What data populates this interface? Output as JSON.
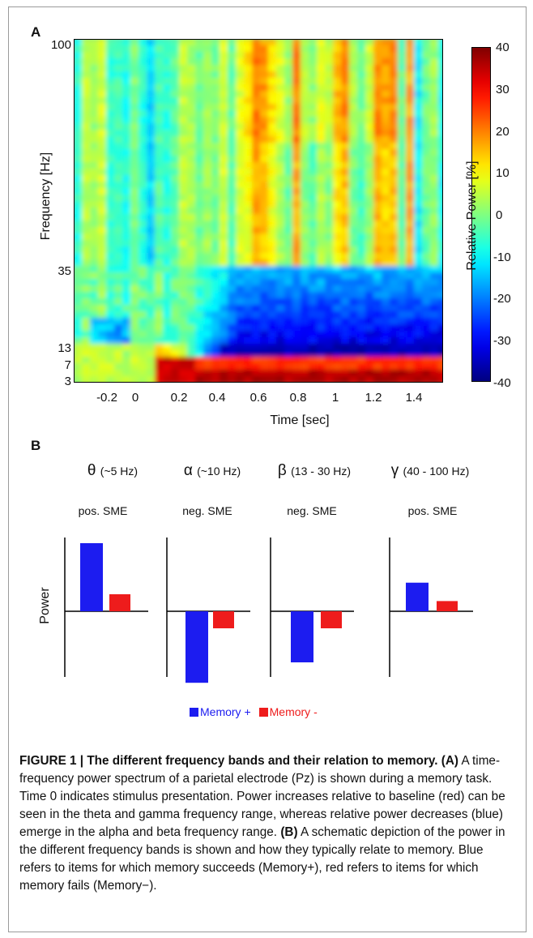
{
  "panel_a": {
    "label": "A",
    "ylabel": "Frequency [Hz]",
    "xlabel": "Time [sec]",
    "yticks": [
      "100",
      "35",
      "13",
      "7",
      "3"
    ],
    "xticks": [
      "-0.2",
      "0",
      "0.2",
      "0.4",
      "0.6",
      "0.8",
      "1",
      "1.2",
      "1.4"
    ],
    "colorbar_label": "Relative Power [%]",
    "colorbar_ticks": [
      "40",
      "30",
      "20",
      "10",
      "0",
      "-10",
      "-20",
      "-30",
      "-40"
    ],
    "colormap": "jet"
  },
  "panel_b": {
    "label": "B",
    "ylabel": "Power",
    "bands": [
      {
        "symbol": "θ",
        "range": "(~5 Hz)",
        "sme": "pos. SME"
      },
      {
        "symbol": "α",
        "range": "(~10 Hz)",
        "sme": "neg. SME"
      },
      {
        "symbol": "β",
        "range": "(13 - 30 Hz)",
        "sme": "neg. SME"
      },
      {
        "symbol": "γ",
        "range": "(40 - 100 Hz)",
        "sme": "pos. SME"
      }
    ],
    "legend": [
      {
        "label": "Memory +",
        "color": "#1c1cf0"
      },
      {
        "label": "Memory -",
        "color": "#ee1c1c"
      }
    ]
  },
  "caption": {
    "title": "FIGURE 1 | The different frequency bands and their relation to memory.",
    "part_a_tag": "(A)",
    "part_a_text": "A time-frequency power spectrum of a parietal electrode (Pz) is shown during a memory task. Time 0 indicates stimulus presentation. Power increases relative to baseline (red) can be seen in the theta and gamma frequency range, whereas relative power decreases (blue) emerge in the alpha and beta frequency range.",
    "part_b_tag": "(B)",
    "part_b_text": "A schematic depiction of the power in the different frequency bands is shown and how they typically relate to memory. Blue refers to items for which memory succeeds (Memory+), red refers to items for which memory fails (Memory−)."
  },
  "chart_data": [
    {
      "type": "heatmap",
      "title": "",
      "xlabel": "Time [sec]",
      "ylabel": "Frequency [Hz]",
      "colorbar_label": "Relative Power [%]",
      "xlim": [
        -0.35,
        1.5
      ],
      "zlim": [
        -40,
        40
      ],
      "ytick_values": [
        100,
        35,
        13,
        7,
        3
      ],
      "xtick_values": [
        -0.2,
        0,
        0.2,
        0.4,
        0.6,
        0.8,
        1,
        1.2,
        1.4
      ],
      "features": [
        {
          "band": "3-7 Hz",
          "time": "0.1 to 1.5 sec",
          "relative_power": 30
        },
        {
          "band": "7-13 Hz",
          "time": "0.3 to 1.5 sec",
          "relative_power": -35
        },
        {
          "band": "13-35 Hz",
          "time": "0.3 to 1.5 sec",
          "relative_power": -30
        },
        {
          "band": "35-100 Hz",
          "time": "0.5 to 1.3 sec",
          "relative_power": 15
        }
      ]
    },
    {
      "type": "bar",
      "ylabel": "Power",
      "categories": [
        "θ",
        "α",
        "β",
        "γ"
      ],
      "series": [
        {
          "name": "Memory +",
          "values": [
            1.0,
            -1.05,
            -0.75,
            0.42
          ]
        },
        {
          "name": "Memory -",
          "values": [
            0.25,
            -0.25,
            -0.25,
            0.15
          ]
        }
      ]
    }
  ]
}
